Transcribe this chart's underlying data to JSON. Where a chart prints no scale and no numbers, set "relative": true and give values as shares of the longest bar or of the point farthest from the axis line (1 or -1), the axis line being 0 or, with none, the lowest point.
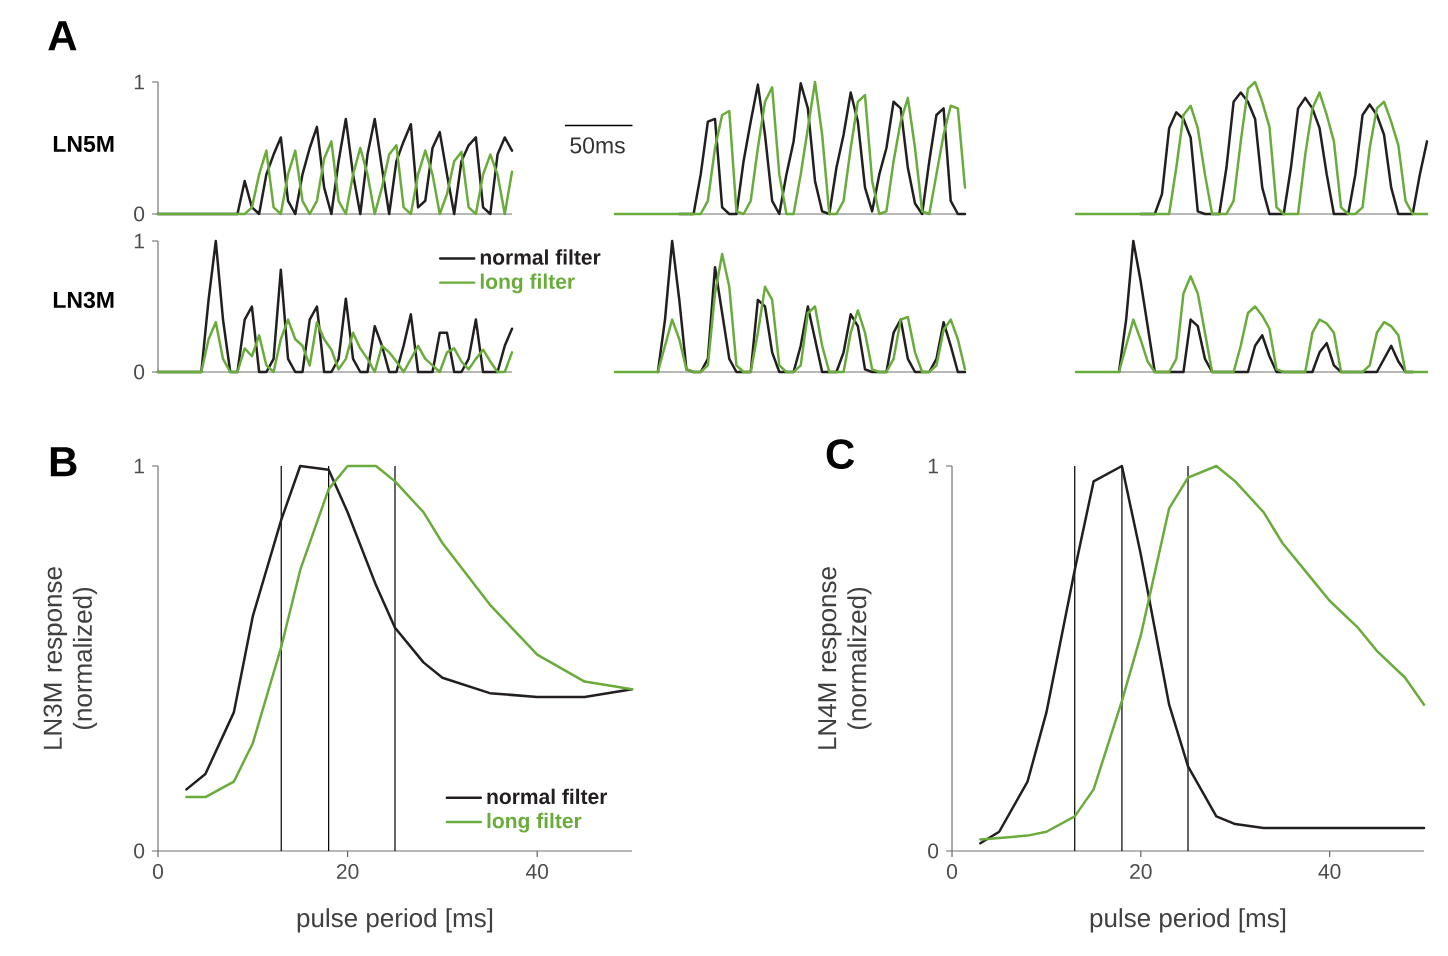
{
  "chart_data": [
    {
      "type": "line",
      "title": "A",
      "ylabel": "LN5M",
      "tick_labels": "y",
      "ylim": [
        0,
        1
      ],
      "yticks": [
        0,
        1
      ],
      "categories": [
        null,
        null,
        null,
        null,
        null,
        null,
        null,
        null,
        null,
        null,
        null,
        null,
        null,
        null,
        null,
        null,
        null,
        null,
        null,
        null,
        null,
        null,
        null,
        null,
        null,
        null,
        null,
        null,
        null,
        null,
        null,
        null,
        null,
        null,
        null,
        null,
        null,
        null,
        null,
        null,
        null,
        null,
        null,
        null,
        null,
        null,
        null,
        null,
        null,
        null
      ],
      "series": [
        {
          "color": "#231f20",
          "values": [
            0,
            0,
            0,
            0,
            0,
            0,
            0,
            0,
            0,
            0,
            0,
            0,
            0.25,
            0.05,
            0,
            0.3,
            0.45,
            0.58,
            0.1,
            0,
            0.3,
            0.5,
            0.66,
            0.2,
            0,
            0.4,
            0.72,
            0.3,
            0,
            0.45,
            0.72,
            0.35,
            0,
            0.4,
            0.55,
            0.68,
            0.05,
            0.1,
            0.5,
            0.62,
            0.3,
            0,
            0.4,
            0.52,
            0.58,
            0.05,
            0,
            0.45,
            0.58,
            0.48
          ]
        },
        {
          "color": "#6aac3c",
          "values": [
            0,
            0,
            0,
            0,
            0,
            0,
            0,
            0,
            0,
            0,
            0,
            0,
            0,
            0.05,
            0.3,
            0.48,
            0.05,
            0,
            0.3,
            0.48,
            0.1,
            0,
            0.1,
            0.42,
            0.55,
            0.1,
            0,
            0.3,
            0.5,
            0.3,
            0,
            0.2,
            0.45,
            0.52,
            0.05,
            0,
            0.3,
            0.48,
            0.3,
            0,
            0.15,
            0.4,
            0.47,
            0.05,
            0,
            0.3,
            0.45,
            0.3,
            0,
            0.32
          ]
        }
      ]
    },
    {
      "type": "line",
      "relative": true,
      "annotations": [
        "50ms"
      ],
      "categories": [
        null,
        null,
        null,
        null,
        null,
        null,
        null,
        null,
        null,
        null,
        null,
        null,
        null,
        null,
        null,
        null,
        null,
        null,
        null,
        null,
        null,
        null,
        null,
        null,
        null,
        null,
        null,
        null,
        null,
        null,
        null,
        null,
        null,
        null,
        null,
        null,
        null,
        null,
        null,
        null,
        null,
        null,
        null,
        null,
        null,
        null,
        null,
        null,
        null,
        null
      ],
      "series": [
        {
          "color": "#231f20",
          "values": [
            null,
            null,
            null,
            null,
            null,
            null,
            null,
            null,
            null,
            0,
            0,
            0,
            0.3,
            0.7,
            0.72,
            0.05,
            0,
            0,
            0.4,
            0.7,
            0.98,
            0.6,
            0.1,
            0,
            0.3,
            0.55,
            0.99,
            0.8,
            0.25,
            0.02,
            0,
            0.35,
            0.6,
            0.92,
            0.7,
            0.2,
            0.02,
            0.3,
            0.5,
            0.85,
            0.8,
            0.35,
            0.08,
            0,
            0.4,
            0.75,
            0.8,
            0.1,
            0,
            0
          ]
        },
        {
          "color": "#6aac3c",
          "values": [
            0,
            0,
            0,
            0,
            0,
            0,
            0,
            0,
            0,
            0,
            0,
            0,
            0,
            0.1,
            0.5,
            0.75,
            0.78,
            0.02,
            0,
            0.1,
            0.5,
            0.85,
            0.96,
            0.3,
            0,
            0,
            0.3,
            0.65,
            1.0,
            0.6,
            0,
            0,
            0.1,
            0.5,
            0.85,
            0.9,
            0.25,
            0,
            0.02,
            0.4,
            0.7,
            0.88,
            0.5,
            0.02,
            0,
            0.3,
            0.6,
            0.82,
            0.8,
            0.2
          ]
        }
      ]
    },
    {
      "type": "line",
      "relative": true,
      "categories": [
        null,
        null,
        null,
        null,
        null,
        null,
        null,
        null,
        null,
        null,
        null,
        null,
        null,
        null,
        null,
        null,
        null,
        null,
        null,
        null,
        null,
        null,
        null,
        null,
        null,
        null,
        null,
        null,
        null,
        null,
        null,
        null,
        null,
        null,
        null,
        null,
        null,
        null,
        null,
        null,
        null,
        null,
        null,
        null,
        null,
        null,
        null,
        null,
        null,
        null
      ],
      "series": [
        {
          "color": "#231f20",
          "values": [
            null,
            null,
            null,
            null,
            null,
            null,
            null,
            null,
            null,
            0,
            0,
            0,
            0.15,
            0.65,
            0.77,
            0.72,
            0.58,
            0.02,
            0,
            0,
            0,
            0.35,
            0.85,
            0.92,
            0.85,
            0.72,
            0.2,
            0,
            0,
            0,
            0.35,
            0.8,
            0.88,
            0.8,
            0.65,
            0.3,
            0,
            0,
            0,
            0.3,
            0.75,
            0.83,
            0.75,
            0.6,
            0.2,
            0,
            0,
            0,
            0.3,
            0.55
          ]
        },
        {
          "color": "#6aac3c",
          "values": [
            0,
            0,
            0,
            0,
            0,
            0,
            0,
            0,
            0,
            0,
            0,
            0,
            0,
            0,
            0.35,
            0.75,
            0.82,
            0.65,
            0.3,
            0,
            0,
            0,
            0.1,
            0.55,
            0.95,
            1.0,
            0.85,
            0.66,
            0.05,
            0,
            0,
            0,
            0.45,
            0.8,
            0.92,
            0.75,
            0.55,
            0.05,
            0,
            0,
            0.05,
            0.5,
            0.8,
            0.85,
            0.7,
            0.52,
            0.1,
            0,
            0,
            0
          ]
        }
      ]
    },
    {
      "type": "line",
      "ylabel": "LN3M",
      "tick_labels": "y",
      "ylim": [
        0,
        1
      ],
      "yticks": [
        0,
        1
      ],
      "legend": "top right",
      "categories": [
        null,
        null,
        null,
        null,
        null,
        null,
        null,
        null,
        null,
        null,
        null,
        null,
        null,
        null,
        null,
        null,
        null,
        null,
        null,
        null,
        null,
        null,
        null,
        null,
        null,
        null,
        null,
        null,
        null,
        null,
        null,
        null,
        null,
        null,
        null,
        null,
        null,
        null,
        null,
        null,
        null,
        null,
        null,
        null,
        null,
        null,
        null,
        null,
        null,
        null
      ],
      "series": [
        {
          "name": "normal filter",
          "color": "#231f20",
          "values": [
            0,
            0,
            0,
            0,
            0,
            0,
            0,
            0.55,
            1.0,
            0.4,
            0,
            0,
            0.4,
            0.5,
            0,
            0,
            0.1,
            0.78,
            0.1,
            0,
            0,
            0.4,
            0.5,
            0,
            0,
            0.1,
            0.56,
            0.1,
            0,
            0,
            0.35,
            0.2,
            0,
            0,
            0.2,
            0.44,
            0,
            0,
            0,
            0.3,
            0.3,
            0,
            0,
            0.1,
            0.4,
            0,
            0,
            0,
            0.2,
            0.33
          ]
        },
        {
          "name": "long filter",
          "color": "#6aac3c",
          "values": [
            0,
            0,
            0,
            0,
            0,
            0,
            0,
            0.25,
            0.38,
            0.1,
            0,
            0,
            0.18,
            0.12,
            0.28,
            0.05,
            0,
            0.25,
            0.4,
            0.25,
            0.2,
            0.05,
            0.38,
            0.25,
            0.17,
            0.02,
            0.1,
            0.3,
            0.18,
            0.1,
            0,
            0.2,
            0.15,
            0.08,
            0,
            0.1,
            0.2,
            0.1,
            0.05,
            0,
            0.15,
            0.18,
            0.08,
            0.02,
            0.1,
            0.17,
            0.08,
            0,
            0,
            0.15
          ]
        }
      ]
    },
    {
      "type": "line",
      "relative": true,
      "categories": [
        null,
        null,
        null,
        null,
        null,
        null,
        null,
        null,
        null,
        null,
        null,
        null,
        null,
        null,
        null,
        null,
        null,
        null,
        null,
        null,
        null,
        null,
        null,
        null,
        null,
        null,
        null,
        null,
        null,
        null,
        null,
        null,
        null,
        null,
        null,
        null,
        null,
        null,
        null,
        null,
        null,
        null,
        null,
        null,
        null,
        null,
        null,
        null,
        null,
        null
      ],
      "series": [
        {
          "color": "#231f20",
          "values": [
            null,
            null,
            null,
            null,
            null,
            null,
            0,
            0.4,
            1.0,
            0.55,
            0.02,
            0,
            0,
            0.1,
            0.8,
            0.45,
            0.1,
            0,
            0,
            0,
            0.55,
            0.5,
            0.15,
            0,
            0,
            0,
            0.2,
            0.5,
            0.25,
            0,
            0,
            0,
            0.15,
            0.44,
            0.35,
            0.02,
            0,
            0,
            0,
            0.3,
            0.4,
            0.1,
            0,
            0,
            0,
            0.1,
            0.38,
            0.2,
            0,
            0
          ]
        },
        {
          "color": "#6aac3c",
          "values": [
            0,
            0,
            0,
            0,
            0,
            0,
            0,
            0.2,
            0.4,
            0.25,
            0.02,
            0,
            0,
            0.05,
            0.6,
            0.9,
            0.65,
            0.05,
            0,
            0,
            0.3,
            0.65,
            0.55,
            0.05,
            0,
            0,
            0.05,
            0.45,
            0.5,
            0.2,
            0,
            0,
            0,
            0.3,
            0.47,
            0.3,
            0.02,
            0,
            0,
            0.1,
            0.4,
            0.42,
            0.15,
            0,
            0,
            0.05,
            0.32,
            0.4,
            0.25,
            0.02
          ]
        }
      ]
    },
    {
      "type": "line",
      "relative": true,
      "categories": [
        null,
        null,
        null,
        null,
        null,
        null,
        null,
        null,
        null,
        null,
        null,
        null,
        null,
        null,
        null,
        null,
        null,
        null,
        null,
        null,
        null,
        null,
        null,
        null,
        null,
        null,
        null,
        null,
        null,
        null,
        null,
        null,
        null,
        null,
        null,
        null,
        null,
        null,
        null,
        null,
        null,
        null,
        null,
        null,
        null,
        null,
        null,
        null,
        null,
        null
      ],
      "series": [
        {
          "color": "#231f20",
          "values": [
            null,
            null,
            null,
            null,
            null,
            null,
            0,
            0.4,
            1.0,
            0.7,
            0.35,
            0,
            0,
            0,
            0,
            0,
            0.4,
            0.35,
            0.1,
            0,
            0,
            0,
            0,
            0,
            0,
            0.2,
            0.28,
            0.12,
            0,
            0,
            0,
            0,
            0,
            0,
            0.15,
            0.22,
            0.05,
            0,
            0,
            0,
            0,
            0,
            0,
            0.1,
            0.2,
            0.08,
            0,
            0,
            null,
            null
          ]
        },
        {
          "color": "#6aac3c",
          "values": [
            0,
            0,
            0,
            0,
            0,
            0,
            0,
            0.2,
            0.4,
            0.25,
            0.08,
            0,
            0,
            0,
            0.1,
            0.6,
            0.73,
            0.6,
            0.3,
            0,
            0,
            0,
            0,
            0.2,
            0.45,
            0.5,
            0.43,
            0.33,
            0.02,
            0,
            0,
            0,
            0,
            0.3,
            0.4,
            0.37,
            0.3,
            0,
            0,
            0,
            0,
            0.05,
            0.3,
            0.38,
            0.35,
            0.28,
            0,
            0,
            0,
            0
          ]
        }
      ]
    },
    {
      "type": "line",
      "title": "B",
      "xlabel": "pulse period [ms]",
      "ylabel": "LN3M response (normalized)",
      "xlim": [
        0,
        50
      ],
      "xticks": [
        0,
        20,
        40
      ],
      "ylim": [
        0,
        1
      ],
      "yticks": [
        0,
        1
      ],
      "legend": "bottom right",
      "ref_lines": [
        {
          "axis": "x",
          "value": 13
        },
        {
          "axis": "x",
          "value": 18
        },
        {
          "axis": "x",
          "value": 25
        }
      ],
      "x": [
        3,
        5,
        8,
        10,
        13,
        15,
        18,
        20,
        23,
        25,
        28,
        30,
        35,
        40,
        45,
        50
      ],
      "series": [
        {
          "name": "normal filter",
          "color": "#231f20",
          "values": [
            0.16,
            0.2,
            0.36,
            0.61,
            0.86,
            1.0,
            0.99,
            0.88,
            0.69,
            0.58,
            0.49,
            0.45,
            0.41,
            0.4,
            0.4,
            0.42
          ]
        },
        {
          "name": "long filter",
          "color": "#6aac3c",
          "values": [
            0.14,
            0.14,
            0.18,
            0.28,
            0.53,
            0.73,
            0.94,
            1.0,
            1.0,
            0.96,
            0.88,
            0.8,
            0.64,
            0.51,
            0.44,
            0.42
          ]
        }
      ]
    },
    {
      "type": "line",
      "title": "C",
      "xlabel": "pulse period [ms]",
      "ylabel": "LN4M response (normalized)",
      "xlim": [
        0,
        50
      ],
      "xticks": [
        0,
        20,
        40
      ],
      "ylim": [
        0,
        1
      ],
      "yticks": [
        0,
        1
      ],
      "ref_lines": [
        {
          "axis": "x",
          "value": 13
        },
        {
          "axis": "x",
          "value": 18
        },
        {
          "axis": "x",
          "value": 25
        }
      ],
      "series": [
        {
          "color": "#231f20",
          "x": [
            3,
            5,
            8,
            10,
            13,
            15,
            18,
            20,
            23,
            25,
            28,
            30,
            33,
            35,
            40,
            45,
            50
          ],
          "values": [
            0.02,
            0.05,
            0.18,
            0.36,
            0.73,
            0.96,
            1.0,
            0.77,
            0.38,
            0.22,
            0.09,
            0.07,
            0.06,
            0.06,
            0.06,
            0.06,
            0.06
          ]
        },
        {
          "color": "#6aac3c",
          "x": [
            3,
            8,
            10,
            13,
            15,
            18,
            20,
            23,
            25,
            28,
            30,
            33,
            35,
            38,
            40,
            43,
            45,
            48,
            50
          ],
          "values": [
            0.03,
            0.04,
            0.05,
            0.09,
            0.16,
            0.39,
            0.56,
            0.89,
            0.97,
            1.0,
            0.96,
            0.88,
            0.8,
            0.71,
            0.65,
            0.58,
            0.52,
            0.45,
            0.38
          ]
        }
      ]
    }
  ]
}
